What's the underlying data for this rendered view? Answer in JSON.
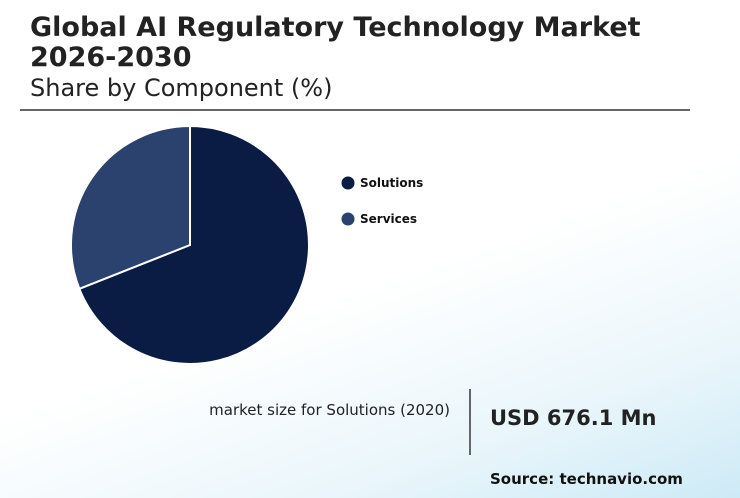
{
  "header": {
    "title": "Global AI Regulatory Technology Market 2026-2030",
    "subtitle": "Share by Component (%)"
  },
  "chart_data": {
    "type": "pie",
    "categories": [
      "Solutions",
      "Services"
    ],
    "values": [
      69,
      31
    ],
    "colors": [
      "#0b1c44",
      "#2b416e"
    ],
    "legend": "right"
  },
  "stat": {
    "label": "market size for Solutions (2020)",
    "value": "USD 676.1 Mn"
  },
  "footer": {
    "source": "Source: technavio.com"
  }
}
